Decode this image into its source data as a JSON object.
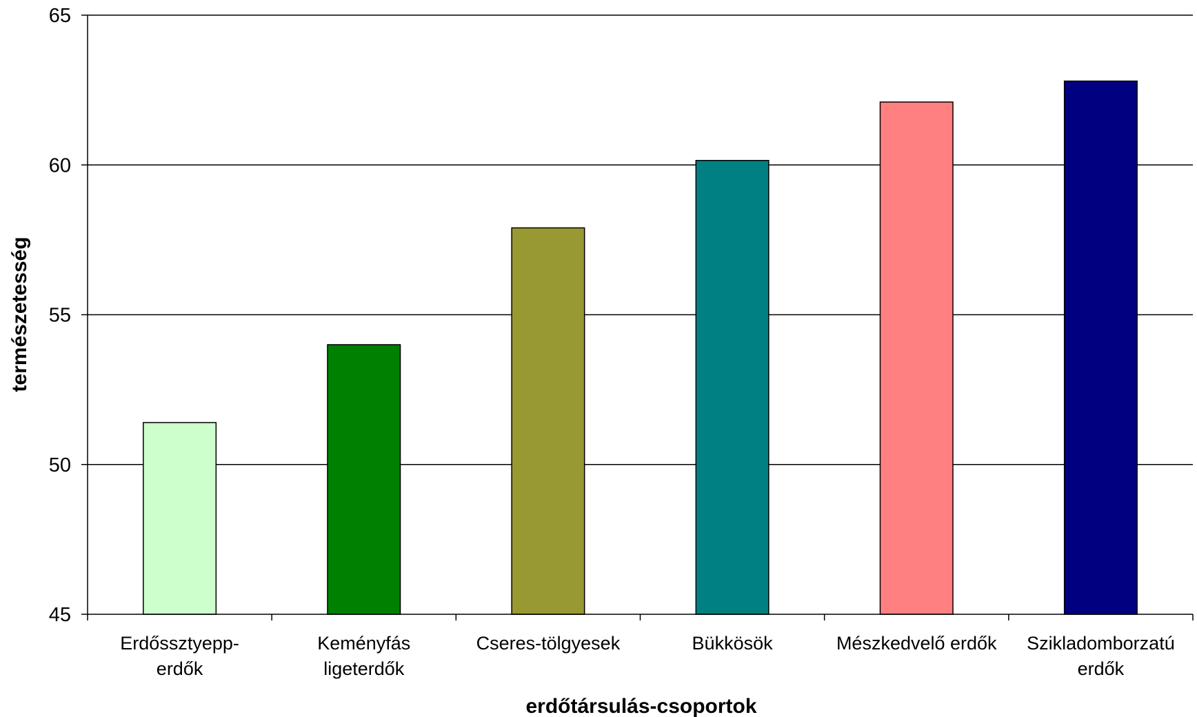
{
  "chart_data": {
    "type": "bar",
    "categories": [
      [
        "Erdőssztyepp-",
        "erdők"
      ],
      [
        "Keményfás",
        "ligeterdők"
      ],
      [
        "Cseres-tölgyesek"
      ],
      [
        "Bükkösök"
      ],
      [
        "Mészkedvelő erdők"
      ],
      [
        "Szikladomborzatú",
        "erdők"
      ]
    ],
    "values": [
      51.4,
      54.0,
      57.9,
      60.15,
      62.1,
      62.8
    ],
    "colors": [
      "#ccffcc",
      "#008000",
      "#999933",
      "#008080",
      "#ff8080",
      "#000080"
    ],
    "xlabel": "erdőtársulás-csoportok",
    "ylabel": "természetesség",
    "ylim": [
      45,
      65
    ],
    "yticks": [
      45,
      50,
      55,
      60,
      65
    ],
    "grid": true,
    "legend": "none"
  }
}
